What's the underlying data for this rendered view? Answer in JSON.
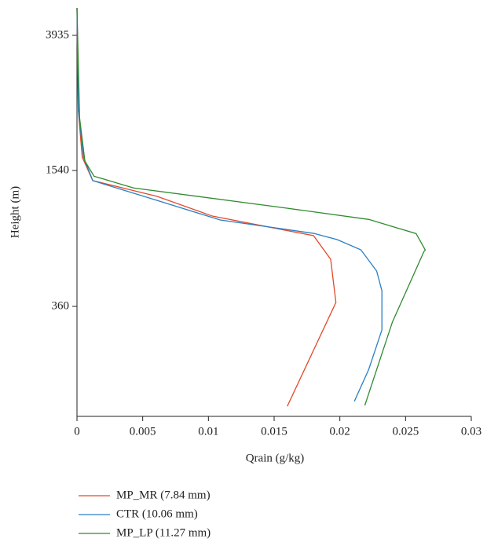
{
  "chart_data": {
    "type": "line",
    "x_label": "Qrain (g/kg)",
    "y_label": "Height (m)",
    "xlim": [
      0,
      0.03
    ],
    "xticks": [
      0,
      0.005,
      0.01,
      0.015,
      0.02,
      0.025,
      0.03
    ],
    "ylim": [
      0,
      4420
    ],
    "yticks": [
      360,
      1540,
      3935
    ],
    "y_scale": "piecewise",
    "series": [
      {
        "name": "MP_MR (7.84 mm)",
        "color": "#e2492b",
        "x": [
          0.016,
          0.0197,
          0.0193,
          0.018,
          0.0103,
          0.0061,
          0.0012,
          0.0004,
          0.0001,
          0
        ],
        "values": [
          33,
          394,
          769,
          974,
          1144,
          1315,
          1452,
          1776,
          2610,
          4420
        ]
      },
      {
        "name": "CTR (10.06 mm)",
        "color": "#2a7fc4",
        "x": [
          0.0211,
          0.0222,
          0.0232,
          0.0232,
          0.0228,
          0.0216,
          0.0198,
          0.018,
          0.0109,
          0.0061,
          0.0012,
          0.0005,
          0.0001,
          0
        ],
        "values": [
          49,
          154,
          283,
          496,
          667,
          851,
          940,
          994,
          1110,
          1280,
          1452,
          1776,
          2610,
          4420
        ]
      },
      {
        "name": "MP_LP (11.27 mm)",
        "color": "#2e8b2e",
        "x": [
          0.0219,
          0.024,
          0.0264,
          0.0265,
          0.0258,
          0.0222,
          0.0157,
          0.0043,
          0.0013,
          0.0006,
          0.0002,
          0
        ],
        "values": [
          36,
          309,
          837,
          850,
          992,
          1115,
          1217,
          1388,
          1490,
          1707,
          2470,
          4420
        ]
      }
    ]
  }
}
